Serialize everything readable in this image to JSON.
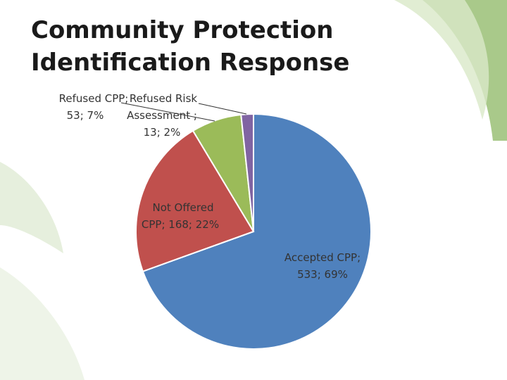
{
  "slide": {
    "title_line1": "Community Protection",
    "title_line2": "Identification Response"
  },
  "colors": {
    "accent_green": "#a9c98a",
    "accent_green_light": "#d9e8c8"
  },
  "chart_data": {
    "type": "pie",
    "title": "",
    "slices": [
      {
        "label_line1": "Accepted CPP;",
        "label_line2": "533; 69%",
        "value": 533,
        "percent": 69,
        "color": "#4f81bd"
      },
      {
        "label_line1": "Not Offered",
        "label_line2": "CPP; 168; 22%",
        "value": 168,
        "percent": 22,
        "color": "#c0504d"
      },
      {
        "label_line1": "Refused CPP;",
        "label_line2": "53; 7%",
        "value": 53,
        "percent": 7,
        "color": "#9bbb59"
      },
      {
        "label_line1": "Refused Risk",
        "label_line2": "Assessment ;",
        "label_line3": "13; 2%",
        "value": 13,
        "percent": 2,
        "color": "#8064a2"
      }
    ],
    "legend": "none"
  }
}
